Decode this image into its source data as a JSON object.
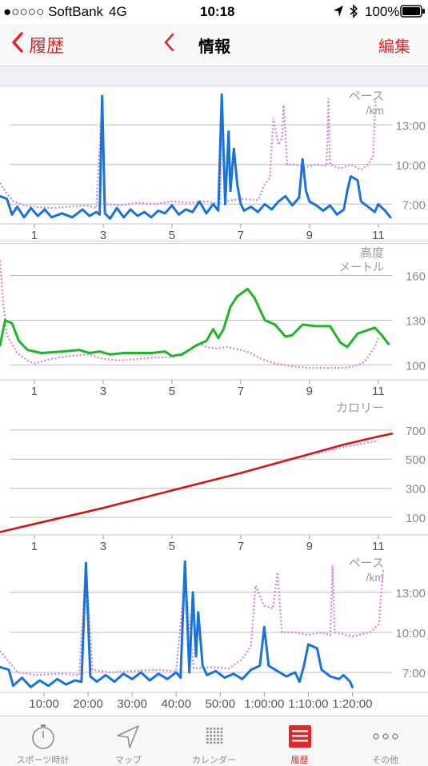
{
  "status_bar": {
    "carrier": "●○○○○ SoftBank",
    "network": "4G",
    "time": "10:18",
    "battery": "100%"
  },
  "nav": {
    "back_label": "履歴",
    "title": "情報",
    "edit_label": "編集"
  },
  "colors": {
    "accent": "#e3262b",
    "pace": "#1a73d9",
    "pace_compare": "#d98ad9",
    "elevation": "#1eb526",
    "calories": "#d01818"
  },
  "charts": [
    {
      "type": "line",
      "label_line1": "ペース",
      "label_line2": "/km",
      "y_ticks": [
        {
          "v": 13,
          "t": "13:00"
        },
        {
          "v": 10,
          "t": "10:00"
        },
        {
          "v": 7,
          "t": "7:00"
        }
      ],
      "x_ticks": [
        "1",
        "3",
        "5",
        "7",
        "9",
        "11"
      ],
      "x_range": [
        0,
        11.4
      ],
      "y_range": [
        5.5,
        15.5
      ],
      "main": [
        [
          0,
          7.6
        ],
        [
          0.2,
          7.4
        ],
        [
          0.35,
          6.2
        ],
        [
          0.5,
          6.8
        ],
        [
          0.7,
          6.0
        ],
        [
          0.9,
          6.7
        ],
        [
          1.1,
          6.1
        ],
        [
          1.3,
          6.6
        ],
        [
          1.5,
          6.0
        ],
        [
          1.8,
          6.3
        ],
        [
          2.1,
          6.0
        ],
        [
          2.4,
          6.6
        ],
        [
          2.6,
          6.1
        ],
        [
          2.8,
          6.4
        ],
        [
          2.9,
          6.2
        ],
        [
          2.97,
          15.2
        ],
        [
          3.05,
          6.3
        ],
        [
          3.2,
          5.9
        ],
        [
          3.4,
          6.7
        ],
        [
          3.6,
          6.0
        ],
        [
          3.8,
          6.6
        ],
        [
          4.0,
          6.1
        ],
        [
          4.2,
          6.4
        ],
        [
          4.4,
          6.0
        ],
        [
          4.6,
          6.5
        ],
        [
          4.8,
          6.3
        ],
        [
          5.0,
          6.9
        ],
        [
          5.2,
          6.2
        ],
        [
          5.4,
          6.6
        ],
        [
          5.6,
          6.4
        ],
        [
          5.8,
          7.2
        ],
        [
          6.0,
          6.3
        ],
        [
          6.2,
          7.0
        ],
        [
          6.35,
          6.5
        ],
        [
          6.45,
          15.3
        ],
        [
          6.55,
          7.0
        ],
        [
          6.65,
          12.5
        ],
        [
          6.7,
          8.0
        ],
        [
          6.8,
          11.2
        ],
        [
          6.9,
          8.5
        ],
        [
          7.0,
          7.0
        ],
        [
          7.1,
          6.5
        ],
        [
          7.3,
          6.8
        ],
        [
          7.5,
          6.4
        ],
        [
          7.7,
          7.0
        ],
        [
          7.9,
          6.6
        ],
        [
          8.1,
          7.2
        ],
        [
          8.3,
          7.6
        ],
        [
          8.5,
          6.9
        ],
        [
          8.7,
          7.5
        ],
        [
          8.8,
          10.4
        ],
        [
          8.9,
          8.0
        ],
        [
          9.0,
          7.2
        ],
        [
          9.2,
          6.9
        ],
        [
          9.4,
          6.5
        ],
        [
          9.6,
          6.9
        ],
        [
          9.8,
          6.2
        ],
        [
          10.0,
          6.6
        ],
        [
          10.1,
          8.0
        ],
        [
          10.2,
          9.1
        ],
        [
          10.4,
          8.8
        ],
        [
          10.5,
          7.2
        ],
        [
          10.7,
          6.8
        ],
        [
          10.9,
          6.4
        ],
        [
          11.0,
          7.0
        ],
        [
          11.2,
          6.5
        ],
        [
          11.35,
          6.0
        ]
      ],
      "compare": [
        [
          0,
          8.6
        ],
        [
          0.2,
          7.8
        ],
        [
          0.4,
          7.2
        ],
        [
          0.7,
          6.9
        ],
        [
          1.0,
          6.8
        ],
        [
          1.5,
          6.7
        ],
        [
          2.0,
          6.8
        ],
        [
          2.5,
          6.9
        ],
        [
          2.8,
          6.7
        ],
        [
          2.97,
          15.0
        ],
        [
          3.05,
          7.0
        ],
        [
          3.5,
          6.9
        ],
        [
          4.0,
          7.1
        ],
        [
          4.5,
          7.0
        ],
        [
          5.0,
          7.2
        ],
        [
          5.5,
          7.1
        ],
        [
          6.0,
          7.2
        ],
        [
          6.4,
          7.0
        ],
        [
          6.45,
          14.0
        ],
        [
          6.55,
          7.2
        ],
        [
          7.0,
          7.4
        ],
        [
          7.5,
          7.3
        ],
        [
          7.7,
          8.5
        ],
        [
          7.85,
          9.0
        ],
        [
          7.95,
          13.5
        ],
        [
          8.1,
          11.5
        ],
        [
          8.2,
          12.0
        ],
        [
          8.25,
          14.5
        ],
        [
          8.35,
          10.0
        ],
        [
          8.6,
          10.0
        ],
        [
          8.9,
          9.8
        ],
        [
          9.2,
          10.0
        ],
        [
          9.5,
          9.9
        ],
        [
          9.55,
          15.0
        ],
        [
          9.6,
          10.0
        ],
        [
          9.9,
          9.7
        ],
        [
          10.2,
          10.0
        ],
        [
          10.5,
          9.6
        ],
        [
          10.7,
          10.0
        ],
        [
          10.85,
          10.6
        ],
        [
          10.92,
          14.8
        ]
      ]
    },
    {
      "type": "line",
      "label_line1": "高度",
      "label_line2": "メートル",
      "y_ticks": [
        {
          "v": 160,
          "t": "160"
        },
        {
          "v": 130,
          "t": "130"
        },
        {
          "v": 100,
          "t": "100"
        }
      ],
      "x_ticks": [
        "1",
        "3",
        "5",
        "7",
        "9",
        "11"
      ],
      "x_range": [
        0,
        11.4
      ],
      "y_range": [
        90,
        178
      ],
      "main": [
        [
          0,
          113
        ],
        [
          0.15,
          130
        ],
        [
          0.35,
          128
        ],
        [
          0.55,
          116
        ],
        [
          0.8,
          110
        ],
        [
          1.2,
          108
        ],
        [
          1.8,
          109
        ],
        [
          2.3,
          110
        ],
        [
          2.6,
          108
        ],
        [
          2.9,
          109
        ],
        [
          3.2,
          107
        ],
        [
          3.6,
          108
        ],
        [
          4.0,
          108
        ],
        [
          4.4,
          108
        ],
        [
          4.8,
          109
        ],
        [
          5.0,
          106
        ],
        [
          5.3,
          107
        ],
        [
          5.7,
          113
        ],
        [
          6.0,
          116
        ],
        [
          6.2,
          124
        ],
        [
          6.35,
          118
        ],
        [
          6.5,
          124
        ],
        [
          6.7,
          139
        ],
        [
          6.9,
          146
        ],
        [
          7.2,
          151
        ],
        [
          7.4,
          145
        ],
        [
          7.7,
          130
        ],
        [
          8.0,
          127
        ],
        [
          8.3,
          119
        ],
        [
          8.5,
          120
        ],
        [
          8.8,
          127
        ],
        [
          9.2,
          126
        ],
        [
          9.6,
          126
        ],
        [
          9.9,
          115
        ],
        [
          10.1,
          112
        ],
        [
          10.4,
          121
        ],
        [
          10.9,
          125
        ],
        [
          11.1,
          120
        ],
        [
          11.3,
          114
        ]
      ],
      "compare": [
        [
          0,
          170
        ],
        [
          0.1,
          140
        ],
        [
          0.2,
          120
        ],
        [
          0.5,
          108
        ],
        [
          0.8,
          103
        ],
        [
          1.0,
          101
        ],
        [
          1.5,
          104
        ],
        [
          2.0,
          106
        ],
        [
          2.6,
          107
        ],
        [
          3.0,
          104
        ],
        [
          3.5,
          103
        ],
        [
          4.0,
          104
        ],
        [
          4.5,
          105
        ],
        [
          5.0,
          105
        ],
        [
          5.5,
          110
        ],
        [
          5.8,
          114
        ],
        [
          6.0,
          112
        ],
        [
          6.3,
          111
        ],
        [
          6.6,
          112
        ],
        [
          7.0,
          110
        ],
        [
          7.3,
          108
        ],
        [
          7.6,
          104
        ],
        [
          8.0,
          101
        ],
        [
          8.5,
          99
        ],
        [
          9.0,
          98
        ],
        [
          9.5,
          98
        ],
        [
          10.0,
          98
        ],
        [
          10.3,
          99
        ],
        [
          10.6,
          102
        ],
        [
          10.9,
          112
        ],
        [
          11.0,
          118
        ]
      ]
    },
    {
      "type": "line",
      "label_line1": "カロリー",
      "label_line2": "",
      "y_ticks": [
        {
          "v": 700,
          "t": "700"
        },
        {
          "v": 500,
          "t": "500"
        },
        {
          "v": 300,
          "t": "300"
        },
        {
          "v": 100,
          "t": "100"
        }
      ],
      "x_ticks": [
        "1",
        "3",
        "5",
        "7",
        "9",
        "11"
      ],
      "x_range": [
        0,
        11.4
      ],
      "y_range": [
        -20,
        880
      ],
      "main": [
        [
          0,
          0
        ],
        [
          1,
          55
        ],
        [
          2,
          110
        ],
        [
          3,
          165
        ],
        [
          4,
          225
        ],
        [
          5,
          285
        ],
        [
          6,
          345
        ],
        [
          7,
          405
        ],
        [
          8,
          470
        ],
        [
          9,
          535
        ],
        [
          10,
          600
        ],
        [
          11,
          655
        ],
        [
          11.4,
          675
        ]
      ],
      "compare": [
        [
          0,
          0
        ],
        [
          1,
          55
        ],
        [
          2,
          110
        ],
        [
          3,
          165
        ],
        [
          4,
          225
        ],
        [
          5,
          285
        ],
        [
          6,
          345
        ],
        [
          7,
          405
        ],
        [
          8,
          470
        ],
        [
          9,
          530
        ],
        [
          10,
          585
        ],
        [
          11,
          625
        ]
      ]
    },
    {
      "type": "line",
      "label_line1": "ペース",
      "label_line2": "/km",
      "y_ticks": [
        {
          "v": 13,
          "t": "13:00"
        },
        {
          "v": 10,
          "t": "10:00"
        },
        {
          "v": 7,
          "t": "7:00"
        }
      ],
      "x_ticks": [
        "10:00",
        "20:00",
        "30:00",
        "40:00",
        "50:00",
        "1:00:00",
        "1:10:00",
        "1:20:00"
      ],
      "x_ticks_at": [
        10,
        20,
        30,
        40,
        50,
        60,
        70,
        80
      ],
      "x_range": [
        0,
        89
      ],
      "y_range": [
        5.5,
        15.5
      ],
      "main": [
        [
          0,
          7.4
        ],
        [
          2,
          7.2
        ],
        [
          3,
          6.0
        ],
        [
          5,
          6.6
        ],
        [
          7,
          5.9
        ],
        [
          9,
          6.4
        ],
        [
          11,
          6.0
        ],
        [
          13,
          6.5
        ],
        [
          15,
          6.1
        ],
        [
          17,
          6.4
        ],
        [
          18.5,
          6.3
        ],
        [
          19.5,
          15.2
        ],
        [
          20.5,
          6.7
        ],
        [
          22,
          6.3
        ],
        [
          24,
          6.8
        ],
        [
          26,
          6.3
        ],
        [
          28,
          6.9
        ],
        [
          30,
          6.5
        ],
        [
          32,
          7.0
        ],
        [
          34,
          6.4
        ],
        [
          36,
          6.9
        ],
        [
          38,
          6.5
        ],
        [
          40,
          7.0
        ],
        [
          41,
          6.6
        ],
        [
          42,
          15.3
        ],
        [
          43,
          7.0
        ],
        [
          43.8,
          13.0
        ],
        [
          44.5,
          8.2
        ],
        [
          45,
          11.5
        ],
        [
          46,
          7.5
        ],
        [
          47,
          6.8
        ],
        [
          49,
          7.1
        ],
        [
          51,
          6.6
        ],
        [
          53,
          6.9
        ],
        [
          55,
          6.5
        ],
        [
          57,
          7.2
        ],
        [
          59,
          7.5
        ],
        [
          60,
          10.4
        ],
        [
          61,
          7.5
        ],
        [
          63,
          7.1
        ],
        [
          65,
          6.7
        ],
        [
          67,
          7.0
        ],
        [
          68,
          6.3
        ],
        [
          69,
          7.5
        ],
        [
          70,
          9.1
        ],
        [
          72,
          8.8
        ],
        [
          73,
          7.2
        ],
        [
          75,
          6.7
        ],
        [
          77,
          6.5
        ],
        [
          78,
          6.8
        ],
        [
          79.5,
          6.3
        ],
        [
          80,
          5.9
        ]
      ],
      "compare": [
        [
          0,
          8.6
        ],
        [
          2,
          7.8
        ],
        [
          4,
          7.0
        ],
        [
          8,
          6.8
        ],
        [
          14,
          6.9
        ],
        [
          18,
          6.8
        ],
        [
          19.5,
          15.0
        ],
        [
          21,
          7.2
        ],
        [
          25,
          7.0
        ],
        [
          30,
          7.1
        ],
        [
          35,
          7.2
        ],
        [
          40,
          7.1
        ],
        [
          42,
          14.0
        ],
        [
          44,
          7.3
        ],
        [
          48,
          7.4
        ],
        [
          52,
          7.3
        ],
        [
          55,
          8.0
        ],
        [
          57,
          9.0
        ],
        [
          58,
          13.5
        ],
        [
          60,
          12.0
        ],
        [
          62,
          11.8
        ],
        [
          63,
          14.5
        ],
        [
          64,
          10.0
        ],
        [
          67,
          10.0
        ],
        [
          70,
          9.8
        ],
        [
          73,
          10.0
        ],
        [
          75,
          9.8
        ],
        [
          75.5,
          15.0
        ],
        [
          76,
          10.0
        ],
        [
          80,
          9.7
        ],
        [
          84,
          10.0
        ],
        [
          86,
          10.6
        ],
        [
          87,
          14.8
        ]
      ]
    }
  ],
  "tabs": [
    {
      "label": "スポーツ時計",
      "icon": "stopwatch-icon"
    },
    {
      "label": "マップ",
      "icon": "location-arrow-icon"
    },
    {
      "label": "カレンダー",
      "icon": "calendar-grid-icon"
    },
    {
      "label": "履歴",
      "icon": "history-icon"
    },
    {
      "label": "その他",
      "icon": "more-dots-icon"
    }
  ]
}
